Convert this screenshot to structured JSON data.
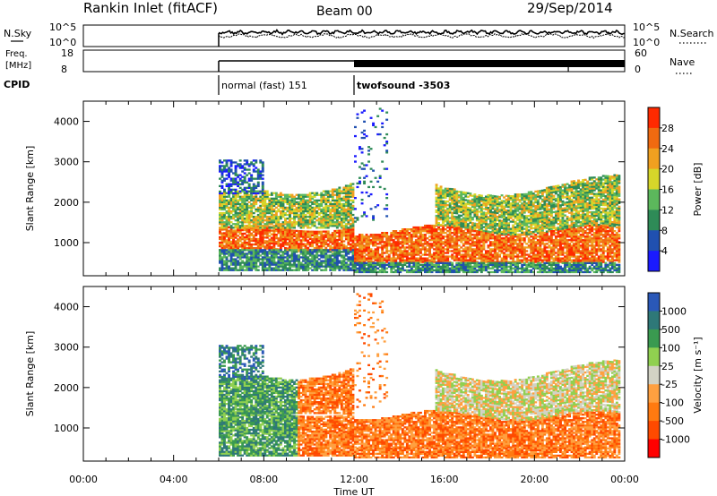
{
  "header": {
    "station": "Rankin Inlet (fitACF)",
    "beam": "Beam 00",
    "date": "29/Sep/2014"
  },
  "noise_panel": {
    "left_label": "N.Sky",
    "right_label": "N.Search",
    "left_ticks": [
      "10^5",
      "10^0"
    ],
    "right_ticks": [
      "10^5",
      "10^0"
    ]
  },
  "freq_panel": {
    "left_label_line1": "Freq.",
    "left_label_line2": "[MHz]",
    "right_label": "Nave",
    "left_ticks": [
      "18",
      "8"
    ],
    "right_ticks": [
      "60",
      "0"
    ]
  },
  "cpid": {
    "label": "CPID",
    "modes": [
      {
        "start_hour": 6.0,
        "text": "normal (fast) 151"
      },
      {
        "start_hour": 12.0,
        "text": "twofsound -3503"
      }
    ]
  },
  "time_axis": {
    "title": "Time UT",
    "ticks": [
      "00:00",
      "04:00",
      "08:00",
      "12:00",
      "16:00",
      "20:00",
      "00:00"
    ]
  },
  "colors": {
    "power": [
      "#1a1aff",
      "#2050b0",
      "#2e8b57",
      "#5cb85c",
      "#d6d62a",
      "#f0a020",
      "#f06a10",
      "#ff2a00"
    ],
    "velocity": [
      "#ff0000",
      "#ff4a00",
      "#ff7a10",
      "#ffa040",
      "#d2d2c4",
      "#90d050",
      "#3a9a50",
      "#2e7878",
      "#2a58b8"
    ]
  },
  "chart_data": [
    {
      "type": "heatmap",
      "title": "",
      "xlabel": "Time UT",
      "ylabel": "Slant Range [km]",
      "xlim": [
        0,
        24
      ],
      "ylim": [
        180,
        4500
      ],
      "yticks": [
        1000,
        2000,
        3000,
        4000
      ],
      "colorbar": {
        "label": "Power [dB]",
        "ticks": [
          "4",
          "8",
          "12",
          "16",
          "20",
          "24",
          "28"
        ],
        "range": [
          0,
          32
        ]
      },
      "features": [
        {
          "t_start": 6.0,
          "t_end": 11.9,
          "r_start": 800,
          "r_end": 1400,
          "peak_value": 28
        },
        {
          "t_start": 6.0,
          "t_end": 11.5,
          "r_start": 1400,
          "r_end": 2300,
          "peak_value": 18
        },
        {
          "t_start": 6.0,
          "t_end": 8.0,
          "r_start": 2500,
          "r_end": 3000,
          "peak_value": 10
        },
        {
          "t_start": 12.0,
          "t_end": 23.8,
          "r_start": 500,
          "r_end": 1400,
          "peak_value": 28
        },
        {
          "t_start": 15.5,
          "t_end": 23.5,
          "r_start": 1400,
          "r_end": 2500,
          "peak_value": 14
        }
      ]
    },
    {
      "type": "heatmap",
      "title": "",
      "xlabel": "Time UT",
      "ylabel": "Slant Range [km]",
      "xlim": [
        0,
        24
      ],
      "ylim": [
        180,
        4500
      ],
      "yticks": [
        1000,
        2000,
        3000,
        4000
      ],
      "colorbar": {
        "label": "Velocity [m s⁻¹]",
        "ticks": [
          "1000",
          "500",
          "100",
          "25",
          "-25",
          "-100",
          "-500",
          "-1000"
        ]
      },
      "features": [
        {
          "t_start": 6.0,
          "t_end": 9.5,
          "r_start": 800,
          "r_end": 2000,
          "typical_value": 200
        },
        {
          "t_start": 9.5,
          "t_end": 12.0,
          "r_start": 1200,
          "r_end": 2200,
          "typical_value": -300
        },
        {
          "t_start": 12.0,
          "t_end": 23.8,
          "r_start": 300,
          "r_end": 1200,
          "typical_value": -200
        },
        {
          "t_start": 15.5,
          "t_end": 23.5,
          "r_start": 1400,
          "r_end": 2500,
          "typical_value": 0
        }
      ]
    }
  ]
}
